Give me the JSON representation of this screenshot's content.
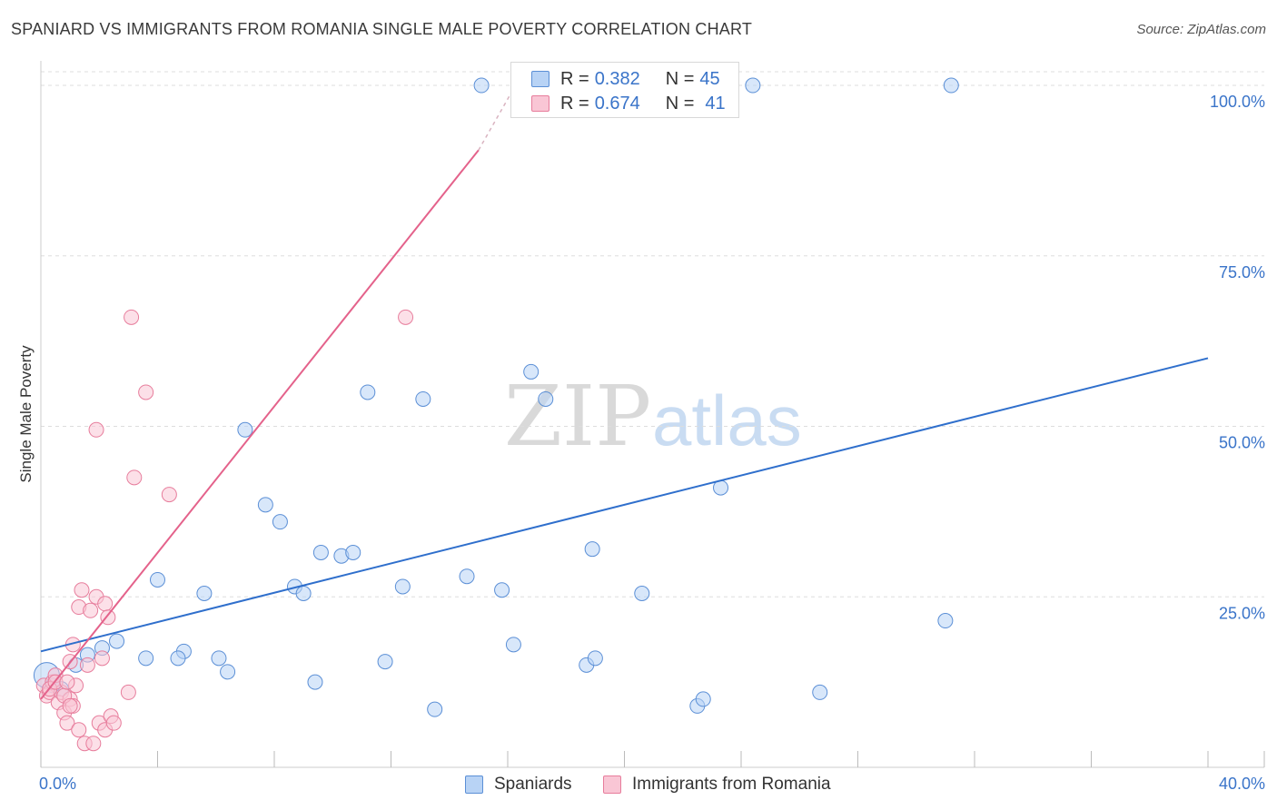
{
  "header": {
    "title": "SPANIARD VS IMMIGRANTS FROM ROMANIA SINGLE MALE POVERTY CORRELATION CHART",
    "source": "Source: ZipAtlas.com"
  },
  "legend": {
    "rows": [
      {
        "r_label": "R =",
        "r_value": "0.382",
        "n_label": "N =",
        "n_value": "45"
      },
      {
        "r_label": "R =",
        "r_value": "0.674",
        "n_label": "N =",
        "n_value": "41"
      }
    ],
    "bottom": [
      "Spaniards",
      "Immigrants from Romania"
    ]
  },
  "colors": {
    "blue_fill": "#b8d3f5",
    "blue_stroke": "#5b8fd6",
    "blue_line": "#2f6fcc",
    "pink_fill": "#f9c6d5",
    "pink_stroke": "#e77d9c",
    "pink_line": "#e4628b",
    "tick_label": "#3a74c9",
    "grid": "#dddddd"
  },
  "chart_data": {
    "type": "scatter",
    "title": "SPANIARD VS IMMIGRANTS FROM ROMANIA SINGLE MALE POVERTY CORRELATION CHART",
    "xlabel": "",
    "ylabel": "Single Male Poverty",
    "xlim": [
      0,
      40
    ],
    "ylim": [
      0,
      102
    ],
    "x_tick_labels": [
      {
        "value": 0,
        "label": "0.0%"
      },
      {
        "value": 40,
        "label": "40.0%"
      }
    ],
    "y_tick_labels": [
      {
        "value": 25,
        "label": "25.0%"
      },
      {
        "value": 50,
        "label": "50.0%"
      },
      {
        "value": 75,
        "label": "75.0%"
      },
      {
        "value": 100,
        "label": "100.0%"
      }
    ],
    "watermark": {
      "zip": "ZIP",
      "atlas": "atlas"
    },
    "series": [
      {
        "name": "Spaniards",
        "color": "#5b8fd6",
        "points": [
          [
            0.2,
            13.5
          ],
          [
            0.7,
            11.5
          ],
          [
            1.2,
            15.0
          ],
          [
            1.6,
            16.5
          ],
          [
            2.1,
            17.5
          ],
          [
            2.6,
            18.5
          ],
          [
            3.6,
            16.0
          ],
          [
            4.0,
            27.5
          ],
          [
            4.9,
            17.0
          ],
          [
            4.7,
            16.0
          ],
          [
            5.6,
            25.5
          ],
          [
            6.1,
            16.0
          ],
          [
            6.4,
            14.0
          ],
          [
            7.0,
            49.5
          ],
          [
            7.7,
            38.5
          ],
          [
            8.2,
            36.0
          ],
          [
            8.7,
            26.5
          ],
          [
            9.0,
            25.5
          ],
          [
            9.4,
            12.5
          ],
          [
            9.6,
            31.5
          ],
          [
            10.3,
            31.0
          ],
          [
            10.7,
            31.5
          ],
          [
            11.2,
            55.0
          ],
          [
            11.8,
            15.5
          ],
          [
            12.4,
            26.5
          ],
          [
            13.1,
            54.0
          ],
          [
            13.5,
            8.5
          ],
          [
            14.6,
            28.0
          ],
          [
            15.1,
            100.0
          ],
          [
            15.8,
            26.0
          ],
          [
            16.2,
            18.0
          ],
          [
            16.8,
            58.0
          ],
          [
            17.3,
            54.0
          ],
          [
            18.7,
            15.0
          ],
          [
            19.0,
            16.0
          ],
          [
            18.9,
            32.0
          ],
          [
            20.6,
            25.5
          ],
          [
            22.5,
            9.0
          ],
          [
            22.7,
            10.0
          ],
          [
            23.3,
            41.0
          ],
          [
            24.4,
            100.0
          ],
          [
            26.7,
            11.0
          ],
          [
            31.2,
            100.0
          ],
          [
            31.0,
            21.5
          ],
          [
            0.4,
            12.0
          ]
        ],
        "trend": {
          "x": [
            0,
            40
          ],
          "y": [
            17.0,
            60.0
          ]
        }
      },
      {
        "name": "Immigrants from Romania",
        "color": "#e77d9c",
        "points": [
          [
            0.1,
            12.0
          ],
          [
            0.2,
            10.5
          ],
          [
            0.3,
            11.0
          ],
          [
            0.4,
            12.5
          ],
          [
            0.5,
            13.5
          ],
          [
            0.6,
            9.5
          ],
          [
            0.7,
            11.0
          ],
          [
            0.8,
            8.0
          ],
          [
            0.9,
            6.5
          ],
          [
            1.0,
            10.0
          ],
          [
            1.0,
            15.5
          ],
          [
            1.1,
            9.0
          ],
          [
            1.1,
            18.0
          ],
          [
            1.2,
            12.0
          ],
          [
            1.3,
            5.5
          ],
          [
            1.3,
            23.5
          ],
          [
            1.4,
            26.0
          ],
          [
            1.5,
            3.5
          ],
          [
            1.6,
            15.0
          ],
          [
            1.7,
            23.0
          ],
          [
            1.8,
            3.5
          ],
          [
            1.9,
            49.5
          ],
          [
            1.9,
            25.0
          ],
          [
            2.0,
            6.5
          ],
          [
            2.1,
            16.0
          ],
          [
            2.2,
            24.0
          ],
          [
            2.2,
            5.5
          ],
          [
            2.3,
            22.0
          ],
          [
            2.4,
            7.5
          ],
          [
            2.5,
            6.5
          ],
          [
            3.1,
            66.0
          ],
          [
            3.2,
            42.5
          ],
          [
            3.0,
            11.0
          ],
          [
            3.6,
            55.0
          ],
          [
            4.4,
            40.0
          ],
          [
            12.5,
            66.0
          ],
          [
            0.3,
            11.5
          ],
          [
            0.5,
            12.5
          ],
          [
            0.8,
            10.5
          ],
          [
            1.0,
            9.0
          ],
          [
            0.9,
            12.5
          ]
        ],
        "trend": {
          "x": [
            0,
            15.0
          ],
          "y": [
            10.0,
            90.5
          ]
        },
        "trend_dashed_ext": {
          "x": [
            15.0,
            16.2
          ],
          "y": [
            90.5,
            99.5
          ]
        }
      }
    ]
  }
}
